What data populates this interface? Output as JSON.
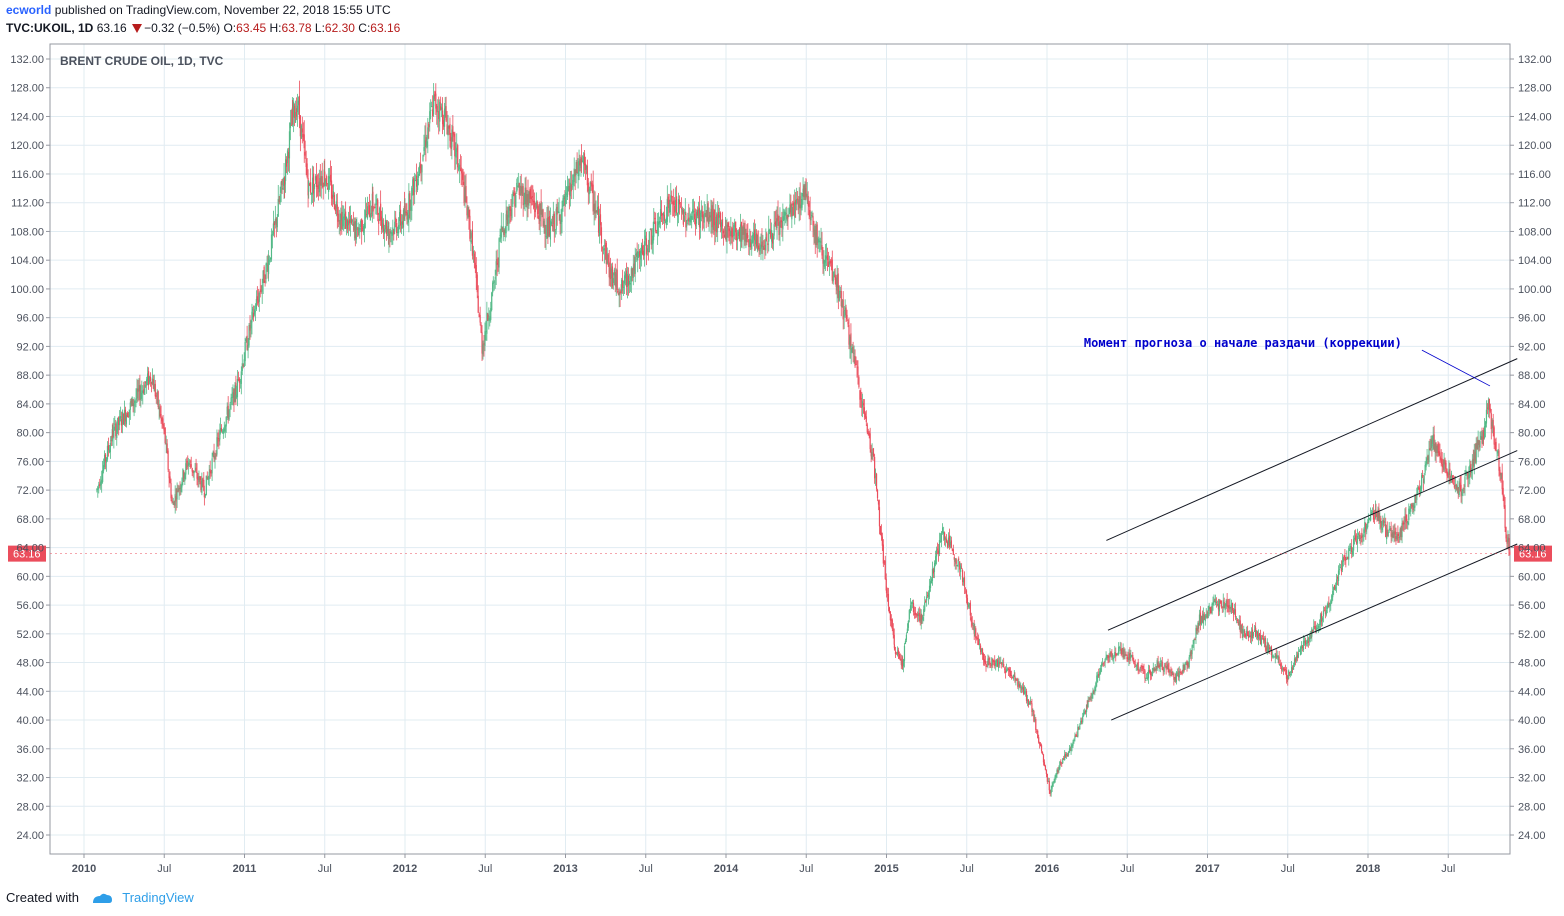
{
  "header": {
    "author": "ecworld",
    "published_text": "published on TradingView.com, November 22, 2018 15:55 UTC",
    "symbol": "TVC:UKOIL, 1D",
    "last_price": "63.16",
    "change": "−0.32 (−0.5%)",
    "open_label": "O:",
    "open": "63.45",
    "high_label": "H:",
    "high": "63.78",
    "low_label": "L:",
    "low": "62.30",
    "close_label": "C:",
    "close": "63.16"
  },
  "footer": {
    "created_with": "Created with",
    "brand": "TradingView"
  },
  "colors": {
    "up": "#53b987",
    "down": "#eb4d5c",
    "price_badge": "#eb4d5c",
    "annotation": "#0000cc",
    "grid": "#e1ecf2"
  },
  "chart_data": {
    "type": "candlestick",
    "title": "BRENT CRUDE OIL, 1D, TVC",
    "ylim": [
      20,
      132
    ],
    "y_ticks": [
      "132.00",
      "128.00",
      "124.00",
      "120.00",
      "116.00",
      "112.00",
      "108.00",
      "104.00",
      "100.00",
      "96.00",
      "92.00",
      "88.00",
      "84.00",
      "80.00",
      "76.00",
      "72.00",
      "68.00",
      "64.00",
      "60.00",
      "56.00",
      "52.00",
      "48.00",
      "44.00",
      "40.00",
      "36.00",
      "32.00",
      "28.00",
      "24.00"
    ],
    "x_ticks": [
      {
        "label": "2010",
        "t": 2010.0,
        "bold": true
      },
      {
        "label": "Jul",
        "t": 2010.5,
        "bold": false
      },
      {
        "label": "2011",
        "t": 2011.0,
        "bold": true
      },
      {
        "label": "Jul",
        "t": 2011.5,
        "bold": false
      },
      {
        "label": "2012",
        "t": 2012.0,
        "bold": true
      },
      {
        "label": "Jul",
        "t": 2012.5,
        "bold": false
      },
      {
        "label": "2013",
        "t": 2013.0,
        "bold": true
      },
      {
        "label": "Jul",
        "t": 2013.5,
        "bold": false
      },
      {
        "label": "2014",
        "t": 2014.0,
        "bold": true
      },
      {
        "label": "Jul",
        "t": 2014.5,
        "bold": false
      },
      {
        "label": "2015",
        "t": 2015.0,
        "bold": true
      },
      {
        "label": "Jul",
        "t": 2015.5,
        "bold": false
      },
      {
        "label": "2016",
        "t": 2016.0,
        "bold": true
      },
      {
        "label": "Jul",
        "t": 2016.5,
        "bold": false
      },
      {
        "label": "2017",
        "t": 2017.0,
        "bold": true
      },
      {
        "label": "Jul",
        "t": 2017.5,
        "bold": false
      },
      {
        "label": "2018",
        "t": 2018.0,
        "bold": true
      },
      {
        "label": "Jul",
        "t": 2018.5,
        "bold": false
      }
    ],
    "price_path": [
      [
        2010.08,
        72
      ],
      [
        2010.18,
        80
      ],
      [
        2010.3,
        84
      ],
      [
        2010.42,
        88
      ],
      [
        2010.5,
        80
      ],
      [
        2010.55,
        70
      ],
      [
        2010.65,
        76
      ],
      [
        2010.75,
        72
      ],
      [
        2010.85,
        80
      ],
      [
        2010.95,
        86
      ],
      [
        2011.05,
        96
      ],
      [
        2011.15,
        104
      ],
      [
        2011.25,
        116
      ],
      [
        2011.3,
        124
      ],
      [
        2011.33,
        126
      ],
      [
        2011.4,
        114
      ],
      [
        2011.5,
        116
      ],
      [
        2011.6,
        110
      ],
      [
        2011.7,
        108
      ],
      [
        2011.8,
        112
      ],
      [
        2011.9,
        108
      ],
      [
        2012.0,
        110
      ],
      [
        2012.1,
        118
      ],
      [
        2012.18,
        126
      ],
      [
        2012.25,
        124
      ],
      [
        2012.35,
        116
      ],
      [
        2012.42,
        106
      ],
      [
        2012.48,
        92
      ],
      [
        2012.55,
        100
      ],
      [
        2012.6,
        108
      ],
      [
        2012.7,
        114
      ],
      [
        2012.8,
        112
      ],
      [
        2012.9,
        108
      ],
      [
        2013.0,
        112
      ],
      [
        2013.1,
        118
      ],
      [
        2013.2,
        110
      ],
      [
        2013.28,
        102
      ],
      [
        2013.35,
        100
      ],
      [
        2013.45,
        104
      ],
      [
        2013.55,
        108
      ],
      [
        2013.65,
        112
      ],
      [
        2013.75,
        110
      ],
      [
        2013.9,
        110
      ],
      [
        2014.0,
        108
      ],
      [
        2014.1,
        108
      ],
      [
        2014.2,
        106
      ],
      [
        2014.3,
        108
      ],
      [
        2014.38,
        110
      ],
      [
        2014.45,
        112
      ],
      [
        2014.5,
        114
      ],
      [
        2014.55,
        108
      ],
      [
        2014.62,
        104
      ],
      [
        2014.7,
        100
      ],
      [
        2014.78,
        92
      ],
      [
        2014.85,
        84
      ],
      [
        2014.92,
        76
      ],
      [
        2015.0,
        58
      ],
      [
        2015.05,
        50
      ],
      [
        2015.1,
        48
      ],
      [
        2015.15,
        56
      ],
      [
        2015.22,
        54
      ],
      [
        2015.3,
        62
      ],
      [
        2015.35,
        66
      ],
      [
        2015.45,
        62
      ],
      [
        2015.55,
        52
      ],
      [
        2015.62,
        48
      ],
      [
        2015.7,
        48
      ],
      [
        2015.8,
        46
      ],
      [
        2015.9,
        42
      ],
      [
        2015.96,
        36
      ],
      [
        2016.02,
        30
      ],
      [
        2016.08,
        34
      ],
      [
        2016.15,
        36
      ],
      [
        2016.25,
        42
      ],
      [
        2016.35,
        48
      ],
      [
        2016.45,
        50
      ],
      [
        2016.55,
        48
      ],
      [
        2016.62,
        46
      ],
      [
        2016.7,
        48
      ],
      [
        2016.8,
        46
      ],
      [
        2016.88,
        48
      ],
      [
        2016.95,
        54
      ],
      [
        2017.05,
        56
      ],
      [
        2017.15,
        56
      ],
      [
        2017.22,
        52
      ],
      [
        2017.3,
        52
      ],
      [
        2017.38,
        50
      ],
      [
        2017.45,
        48
      ],
      [
        2017.5,
        46
      ],
      [
        2017.58,
        50
      ],
      [
        2017.65,
        52
      ],
      [
        2017.75,
        56
      ],
      [
        2017.85,
        62
      ],
      [
        2017.95,
        66
      ],
      [
        2018.05,
        69
      ],
      [
        2018.12,
        66
      ],
      [
        2018.2,
        66
      ],
      [
        2018.28,
        70
      ],
      [
        2018.35,
        74
      ],
      [
        2018.4,
        79
      ],
      [
        2018.45,
        76
      ],
      [
        2018.52,
        74
      ],
      [
        2018.58,
        72
      ],
      [
        2018.65,
        76
      ],
      [
        2018.72,
        80
      ],
      [
        2018.75,
        84
      ],
      [
        2018.78,
        80
      ],
      [
        2018.83,
        74
      ],
      [
        2018.86,
        66
      ],
      [
        2018.89,
        63
      ]
    ],
    "lines": [
      {
        "name": "upper-channel-line",
        "from": [
          2016.37,
          65
        ],
        "to": [
          2018.93,
          90.3
        ]
      },
      {
        "name": "middle-channel-line",
        "from": [
          2016.38,
          52.5
        ],
        "to": [
          2018.93,
          77.5
        ]
      },
      {
        "name": "lower-channel-line",
        "from": [
          2016.4,
          40
        ],
        "to": [
          2018.93,
          64.5
        ]
      }
    ],
    "annotation": {
      "text": "Момент прогноза о начале раздачи (коррекции)",
      "at": [
        2016.23,
        91.9
      ],
      "pointer_to": [
        2018.76,
        86.5
      ]
    },
    "last_price_label": "63.16",
    "last_price": 63.16
  }
}
